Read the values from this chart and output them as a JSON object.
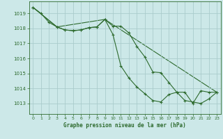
{
  "background_color": "#cce8e8",
  "grid_color": "#aacccc",
  "line_color": "#2d6a2d",
  "marker_color": "#2d6a2d",
  "xlabel": "Graphe pression niveau de la mer (hPa)",
  "xlabel_color": "#2d6a2d",
  "tick_color": "#2d6a2d",
  "ylim": [
    1012.3,
    1019.8
  ],
  "xlim": [
    -0.5,
    23.5
  ],
  "yticks": [
    1013,
    1014,
    1015,
    1016,
    1017,
    1018,
    1019
  ],
  "xticks": [
    0,
    1,
    2,
    3,
    4,
    5,
    6,
    7,
    8,
    9,
    10,
    11,
    12,
    13,
    14,
    15,
    16,
    17,
    18,
    19,
    20,
    21,
    22,
    23
  ],
  "series1_x": [
    0,
    1,
    2,
    3,
    4,
    5,
    6,
    7,
    8,
    9,
    10,
    11,
    12,
    13,
    14,
    15,
    16,
    17,
    18,
    19,
    20,
    21,
    22,
    23
  ],
  "series1_y": [
    1019.4,
    1019.0,
    1018.4,
    1018.1,
    1017.9,
    1017.85,
    1017.9,
    1018.05,
    1018.1,
    1018.6,
    1018.15,
    1018.15,
    1017.7,
    1016.8,
    1016.1,
    1015.1,
    1015.05,
    1014.4,
    1013.75,
    1013.2,
    1013.1,
    1013.0,
    1013.3,
    1013.75
  ],
  "series2_x": [
    0,
    3,
    4,
    5,
    6,
    7,
    8,
    9,
    10,
    11,
    12,
    13,
    14,
    15,
    16,
    17,
    18,
    19,
    20,
    21,
    22,
    23
  ],
  "series2_y": [
    1019.4,
    1018.1,
    1017.9,
    1017.85,
    1017.9,
    1018.05,
    1018.1,
    1018.6,
    1017.6,
    1015.5,
    1014.7,
    1014.1,
    1013.65,
    1013.2,
    1013.1,
    1013.6,
    1013.75,
    1013.75,
    1013.0,
    1013.85,
    1013.75,
    1013.75
  ],
  "series3_x": [
    0,
    3,
    9,
    23
  ],
  "series3_y": [
    1019.4,
    1018.1,
    1018.6,
    1013.75
  ]
}
